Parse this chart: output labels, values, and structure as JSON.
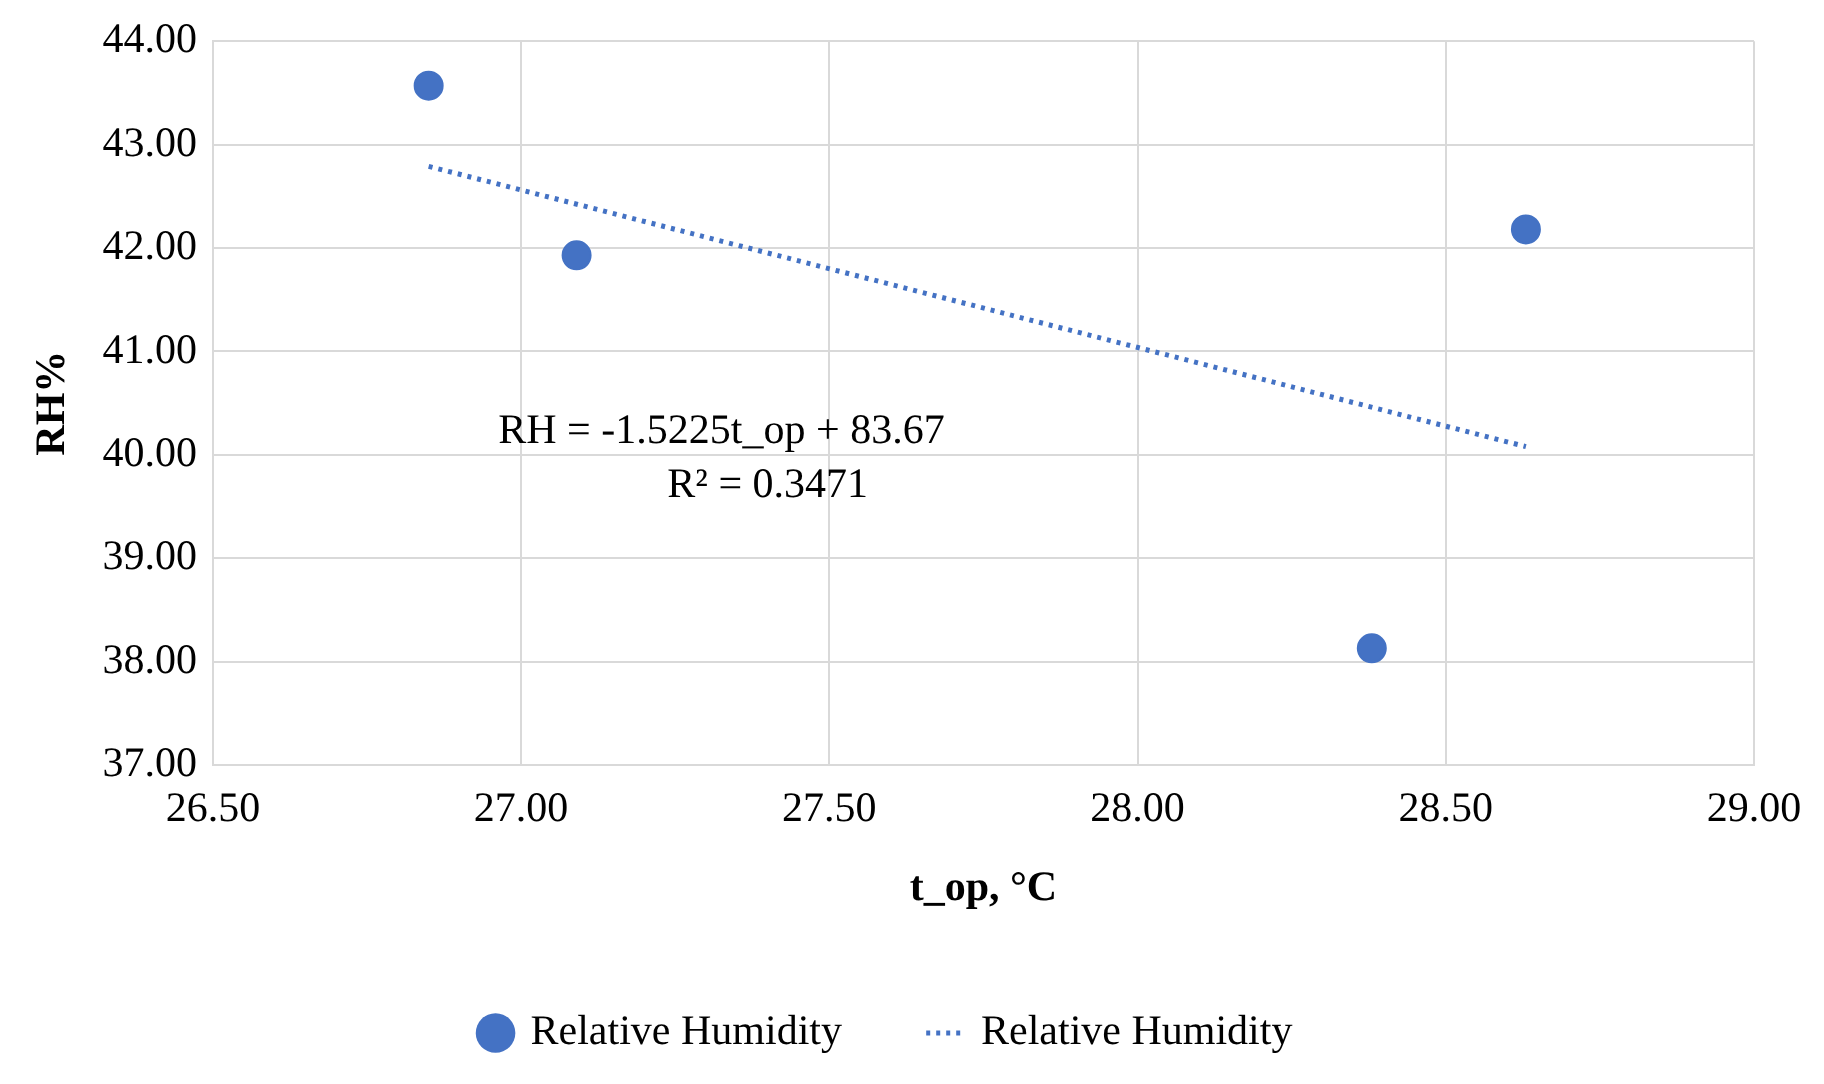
{
  "chart_data": {
    "type": "scatter",
    "xlabel": "t_op, °C",
    "ylabel": "RH%",
    "series": [
      {
        "name": "Relative Humidity",
        "color": "#4472c4",
        "x": [
          26.85,
          27.09,
          28.38,
          28.63
        ],
        "values": [
          43.57,
          41.93,
          38.13,
          42.18
        ],
        "marker": "circle"
      },
      {
        "name": "Relative Humidity",
        "type": "line",
        "color": "#4472c4",
        "x": [
          26.85,
          28.63
        ],
        "values": [
          42.79,
          40.08
        ],
        "line_style": "dotted",
        "marker": "none"
      }
    ],
    "xlim": [
      26.5,
      29
    ],
    "xticks": [
      {
        "value": 26.5,
        "label": "26.50"
      },
      {
        "value": 27,
        "label": "27.00"
      },
      {
        "value": 27.5,
        "label": "27.50"
      },
      {
        "value": 28,
        "label": "28.00"
      },
      {
        "value": 28.5,
        "label": "28.50"
      },
      {
        "value": 29,
        "label": "29.00"
      }
    ],
    "ylim": [
      37,
      44
    ],
    "yticks": [
      {
        "value": 37,
        "label": "37.00"
      },
      {
        "value": 38,
        "label": "38.00"
      },
      {
        "value": 39,
        "label": "39.00"
      },
      {
        "value": 40,
        "label": "40.00"
      },
      {
        "value": 41,
        "label": "41.00"
      },
      {
        "value": 42,
        "label": "42.00"
      },
      {
        "value": 43,
        "label": "43.00"
      },
      {
        "value": 44,
        "label": "44.00"
      }
    ],
    "annotations": [
      "RH = -1.5225t_op + 83.67",
      "R² = 0.3471"
    ],
    "grid": true,
    "legend": "bottom"
  }
}
